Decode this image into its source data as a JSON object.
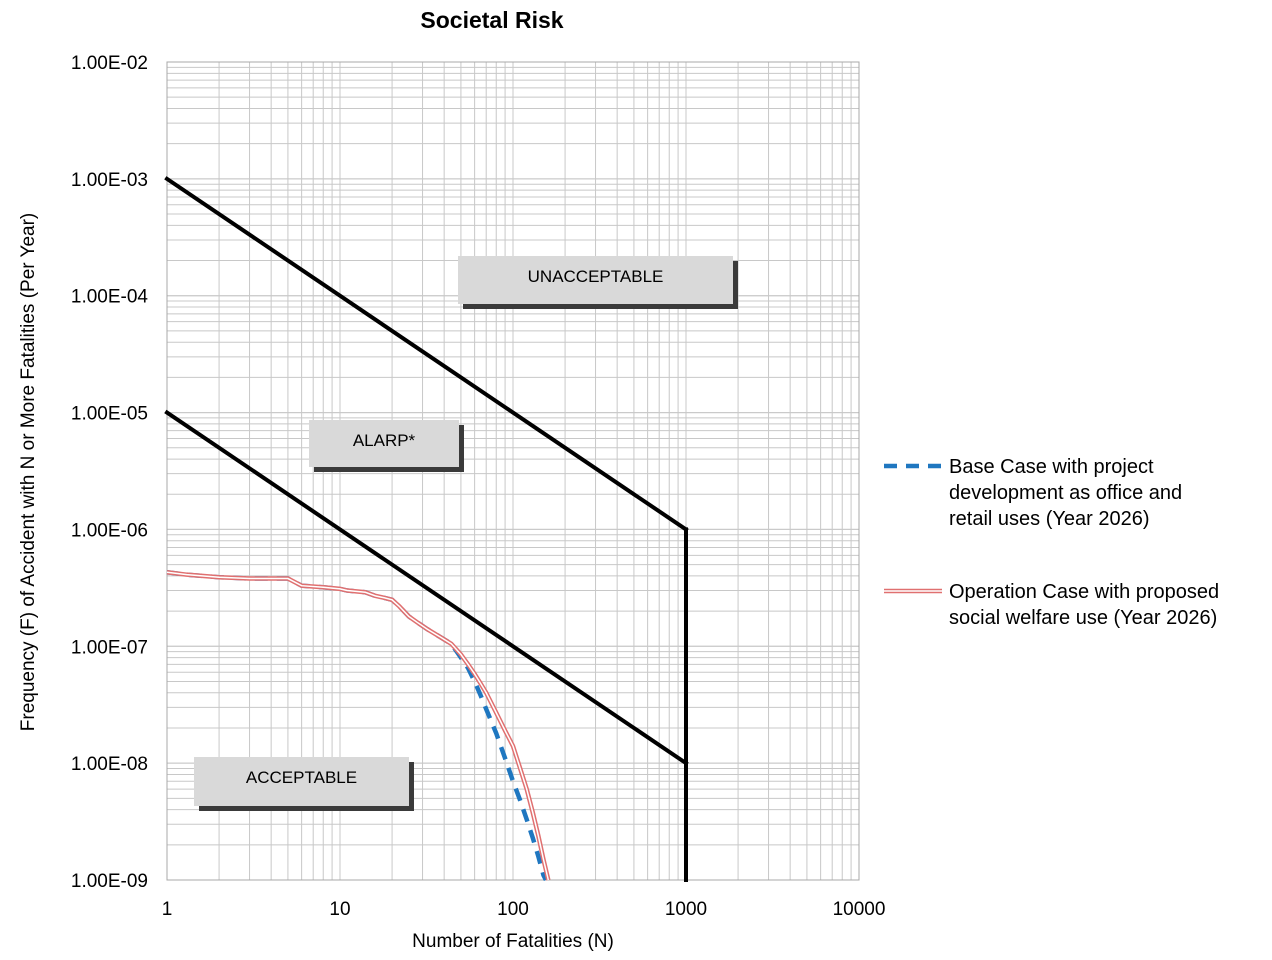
{
  "chart_data": {
    "type": "line",
    "title": "Societal Risk",
    "xlabel": "Number of Fatalities (N)",
    "ylabel": "Frequency (F) of Accident with N or More Fatalities (Per Year)",
    "x_scale": "log",
    "y_scale": "log",
    "xlim": [
      1,
      10000
    ],
    "ylim": [
      1e-09,
      0.01
    ],
    "grid": true,
    "legend_position": "right",
    "x_ticks": [
      "1",
      "10",
      "100",
      "1000",
      "10000"
    ],
    "y_ticks": [
      "1.00E-09",
      "1.00E-08",
      "1.00E-07",
      "1.00E-06",
      "1.00E-05",
      "1.00E-04",
      "1.00E-03",
      "1.00E-02"
    ],
    "boundaries": [
      {
        "x": [
          1,
          1000
        ],
        "y": [
          0.001,
          1e-06
        ]
      },
      {
        "x": [
          1,
          1000
        ],
        "y": [
          1e-05,
          1e-08
        ]
      },
      {
        "x": [
          1000,
          1000
        ],
        "y": [
          1e-06,
          1e-09
        ]
      }
    ],
    "regions": [
      {
        "label": "UNACCEPTABLE"
      },
      {
        "label": "ALARP*"
      },
      {
        "label": "ACCEPTABLE"
      }
    ],
    "series": [
      {
        "name": "Base Case with project development as office and retail uses (Year 2026)",
        "style": "dashed",
        "color": "#1f77c0",
        "x": [
          1,
          1.3,
          2,
          3,
          5,
          6,
          8,
          10,
          11,
          14,
          16,
          18,
          20,
          22,
          25,
          28,
          32,
          38,
          44,
          50,
          55,
          60,
          65,
          70,
          80,
          90,
          100,
          110,
          120,
          130,
          140,
          150,
          155
        ],
        "y": [
          4.3e-07,
          4.1e-07,
          3.9e-07,
          3.8e-07,
          3.8e-07,
          3.3e-07,
          3.2e-07,
          3.1e-07,
          3e-07,
          2.9e-07,
          2.7e-07,
          2.6e-07,
          2.5e-07,
          2.2e-07,
          1.8e-07,
          1.6e-07,
          1.4e-07,
          1.2e-07,
          1.05e-07,
          8e-08,
          6.5e-08,
          5e-08,
          3.8e-08,
          2.9e-08,
          1.8e-08,
          1.1e-08,
          7e-09,
          4.8e-09,
          3.3e-09,
          2.3e-09,
          1.6e-09,
          1.1e-09,
          1e-09
        ]
      },
      {
        "name": "Operation Case with proposed social welfare use (Year 2026)",
        "style": "double",
        "color": "#e07070",
        "x": [
          1,
          1.3,
          2,
          3,
          5,
          6,
          8,
          10,
          11,
          14,
          16,
          18,
          20,
          22,
          25,
          28,
          32,
          38,
          44,
          50,
          55,
          60,
          65,
          70,
          80,
          90,
          100,
          110,
          120,
          130,
          140,
          150,
          160
        ],
        "y": [
          4.3e-07,
          4.1e-07,
          3.9e-07,
          3.8e-07,
          3.8e-07,
          3.3e-07,
          3.2e-07,
          3.1e-07,
          3e-07,
          2.9e-07,
          2.7e-07,
          2.6e-07,
          2.5e-07,
          2.2e-07,
          1.8e-07,
          1.6e-07,
          1.4e-07,
          1.2e-07,
          1.05e-07,
          8.5e-08,
          7e-08,
          5.8e-08,
          4.8e-08,
          4e-08,
          2.7e-08,
          1.9e-08,
          1.4e-08,
          9e-09,
          6e-09,
          3.8e-09,
          2.4e-09,
          1.5e-09,
          1e-09
        ]
      }
    ]
  }
}
